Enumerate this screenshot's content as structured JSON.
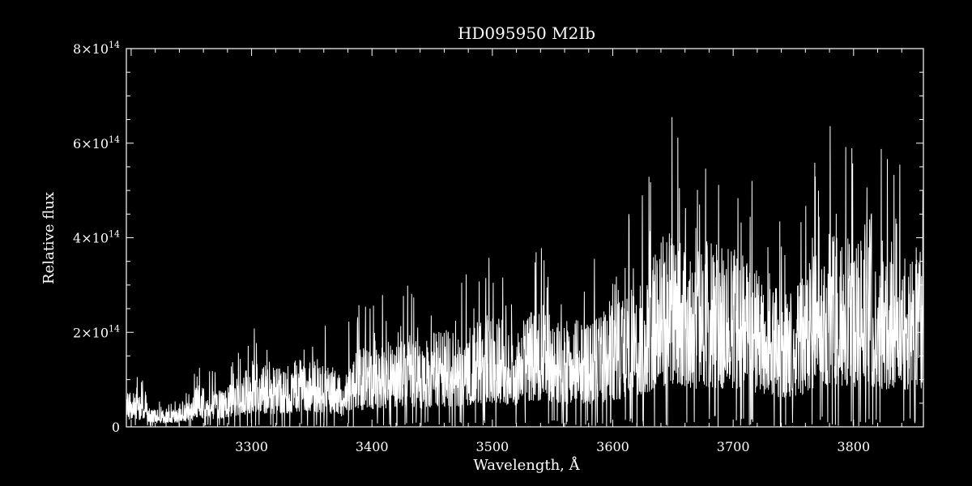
{
  "chart_data": {
    "type": "line",
    "title": "HD095950   M2Ib",
    "xlabel": "Wavelength, Å",
    "ylabel": "Relative flux",
    "xlim": [
      3196,
      3858
    ],
    "ylim": [
      0,
      800000000000000
    ],
    "x_ticks": [
      {
        "value": 3300,
        "label": "3300"
      },
      {
        "value": 3400,
        "label": "3400"
      },
      {
        "value": 3500,
        "label": "3500"
      },
      {
        "value": 3600,
        "label": "3600"
      },
      {
        "value": 3700,
        "label": "3700"
      },
      {
        "value": 3800,
        "label": "3800"
      }
    ],
    "y_ticks": [
      {
        "value": 0,
        "base": "0",
        "exp": ""
      },
      {
        "value": 200000000000000,
        "base": "2×10",
        "exp": "14"
      },
      {
        "value": 400000000000000,
        "base": "4×10",
        "exp": "14"
      },
      {
        "value": 600000000000000,
        "base": "6×10",
        "exp": "14"
      },
      {
        "value": 800000000000000,
        "base": "8×10",
        "exp": "14"
      }
    ],
    "grid": false,
    "series": [
      {
        "x": [
          3196,
          3200,
          3210,
          3220,
          3230,
          3240,
          3250,
          3255,
          3260,
          3270,
          3280,
          3290,
          3300,
          3310,
          3320,
          3330,
          3340,
          3350,
          3360,
          3370,
          3375,
          3380,
          3390,
          3400,
          3410,
          3420,
          3430,
          3440,
          3450,
          3460,
          3470,
          3480,
          3490,
          3500,
          3510,
          3520,
          3530,
          3540,
          3550,
          3560,
          3570,
          3580,
          3590,
          3600,
          3610,
          3620,
          3630,
          3640,
          3650,
          3660,
          3670,
          3680,
          3690,
          3700,
          3710,
          3720,
          3730,
          3740,
          3750,
          3760,
          3770,
          3780,
          3790,
          3800,
          3810,
          3820,
          3830,
          3840,
          3850,
          3858
        ],
        "y": [
          40000000000000,
          45000000000000,
          40000000000000,
          25000000000000,
          20000000000000,
          25000000000000,
          35000000000000,
          55000000000000,
          50000000000000,
          45000000000000,
          55000000000000,
          65000000000000,
          85000000000000,
          80000000000000,
          75000000000000,
          80000000000000,
          85000000000000,
          90000000000000,
          85000000000000,
          75000000000000,
          60000000000000,
          90000000000000,
          100000000000000,
          105000000000000,
          110000000000000,
          115000000000000,
          120000000000000,
          105000000000000,
          120000000000000,
          125000000000000,
          120000000000000,
          130000000000000,
          140000000000000,
          145000000000000,
          140000000000000,
          120000000000000,
          150000000000000,
          160000000000000,
          145000000000000,
          135000000000000,
          140000000000000,
          130000000000000,
          145000000000000,
          160000000000000,
          170000000000000,
          190000000000000,
          210000000000000,
          240000000000000,
          260000000000000,
          240000000000000,
          230000000000000,
          240000000000000,
          230000000000000,
          235000000000000,
          220000000000000,
          200000000000000,
          190000000000000,
          170000000000000,
          175000000000000,
          205000000000000,
          240000000000000,
          260000000000000,
          250000000000000,
          240000000000000,
          240000000000000,
          230000000000000,
          220000000000000,
          215000000000000,
          220000000000000,
          230000000000000
        ],
        "color": "#ffffff"
      }
    ],
    "colors": {
      "background": "#000000",
      "foreground": "#ffffff"
    }
  }
}
